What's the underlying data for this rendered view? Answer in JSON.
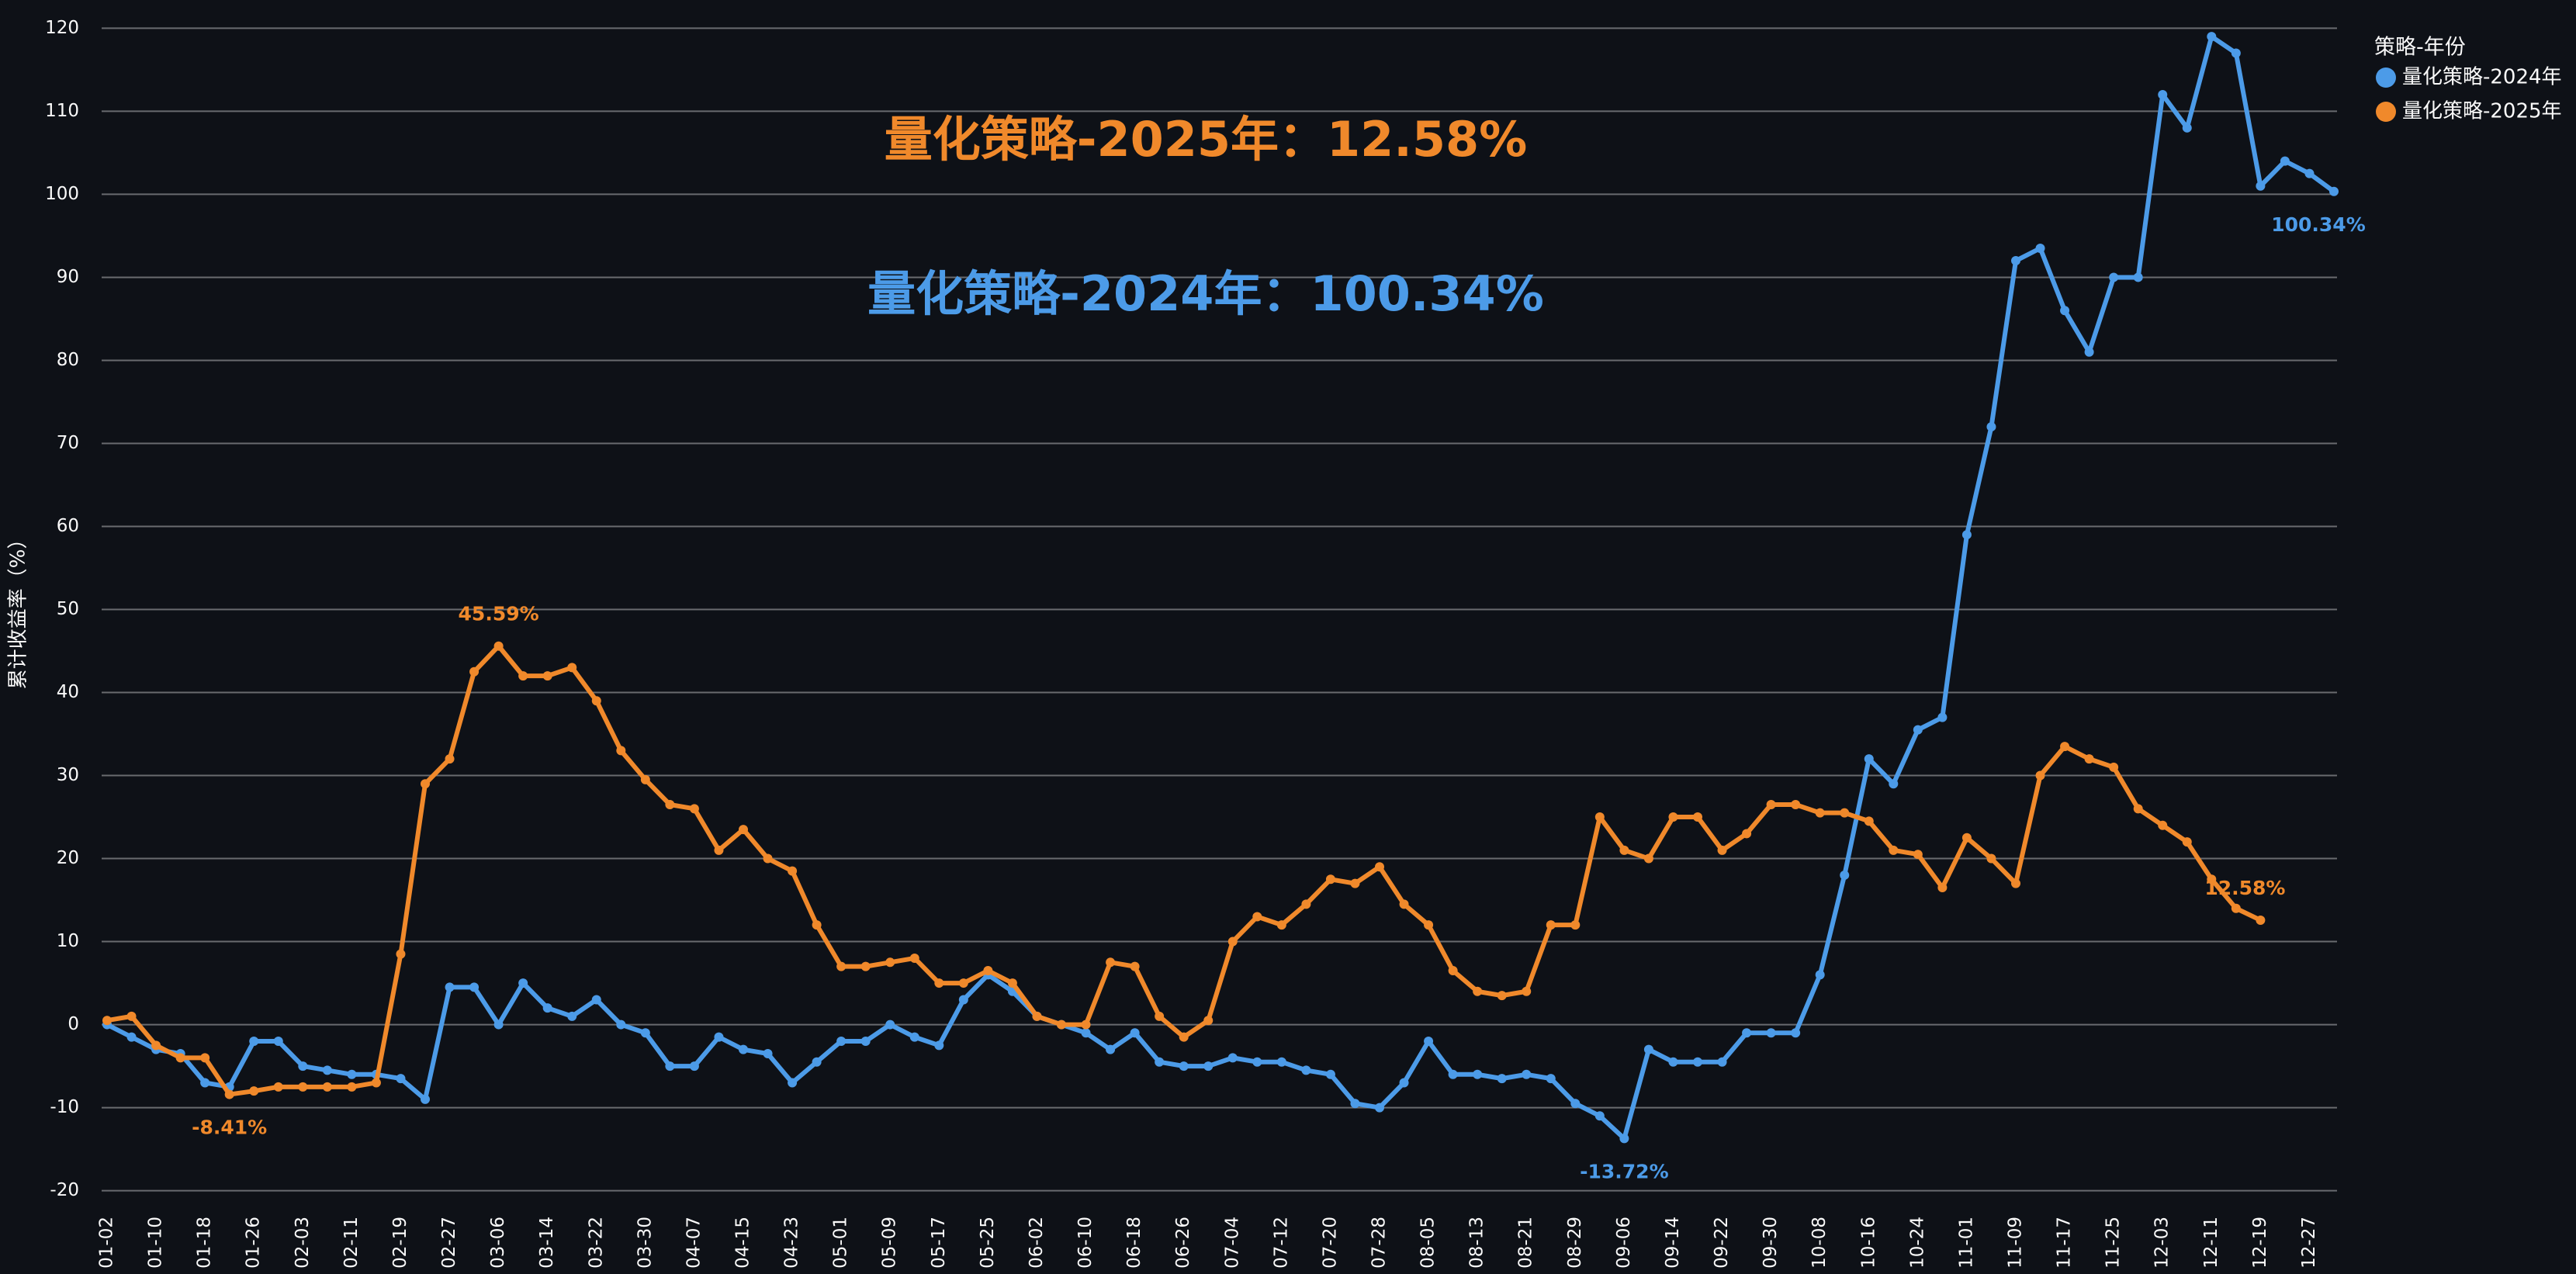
{
  "chart_data": {
    "type": "line",
    "y_label": "累计收益率（%）",
    "legend_title": "策略-年份",
    "legend": "right",
    "grid": true,
    "annotations": [
      {
        "text": "量化策略-2025年：12.58%",
        "color": "#f0892b"
      },
      {
        "text": "量化策略-2024年：100.34%",
        "color": "#4c9be8"
      }
    ],
    "categories": [
      "01-02",
      null,
      "01-10",
      null,
      "01-18",
      null,
      "01-26",
      null,
      "02-03",
      null,
      "02-11",
      null,
      "02-19",
      null,
      "02-27",
      null,
      "03-06",
      null,
      "03-14",
      null,
      "03-22",
      null,
      "03-30",
      null,
      "04-07",
      null,
      "04-15",
      null,
      "04-23",
      null,
      "05-01",
      null,
      "05-09",
      null,
      "05-17",
      null,
      "05-25",
      null,
      "06-02",
      null,
      "06-10",
      null,
      "06-18",
      null,
      "06-26",
      null,
      "07-04",
      null,
      "07-12",
      null,
      "07-20",
      null,
      "07-28",
      null,
      "08-05",
      null,
      "08-13",
      null,
      "08-21",
      null,
      "08-29",
      null,
      "09-06",
      null,
      "09-14",
      null,
      "09-22",
      null,
      "09-30",
      null,
      "10-08",
      null,
      "10-16",
      null,
      "10-24",
      null,
      "11-01",
      null,
      "11-09",
      null,
      "11-17",
      null,
      "11-25",
      null,
      "12-03",
      null,
      "12-11",
      null,
      "12-19",
      null,
      "12-27",
      null
    ],
    "series": [
      {
        "name": "量化策略-2024年",
        "color": "#4c9be8",
        "values": [
          0,
          -1.5,
          -3,
          -3.5,
          -7,
          -7.5,
          -2,
          -2,
          -5,
          -5.5,
          -6,
          -6,
          -6.5,
          -9,
          4.5,
          4.5,
          0,
          5,
          2,
          1,
          3,
          0,
          -1,
          -5,
          -5,
          -1.5,
          -3,
          -3.5,
          -7,
          -4.5,
          -2,
          -2,
          0,
          -1.5,
          -2.5,
          3,
          6,
          4,
          1,
          0,
          -1,
          -3,
          -1,
          -4.5,
          -5,
          -5,
          -4,
          -4.5,
          -4.5,
          -5.5,
          -6,
          -9.5,
          -10,
          -7,
          -2,
          -6,
          -6,
          -6.5,
          -6,
          -6.5,
          -9.5,
          -11,
          -13.72,
          -3,
          -4.5,
          -4.5,
          -4.5,
          -1,
          -1,
          -1,
          6,
          18,
          32,
          29,
          35.5,
          37,
          59,
          72,
          92,
          93.5,
          86,
          81,
          90,
          90,
          112,
          108,
          119,
          117,
          101,
          104,
          102.5,
          100.34
        ],
        "value_labels": [
          null,
          null,
          null,
          null,
          null,
          null,
          null,
          null,
          null,
          null,
          null,
          null,
          null,
          null,
          null,
          null,
          null,
          null,
          null,
          null,
          null,
          null,
          null,
          null,
          null,
          null,
          null,
          null,
          null,
          null,
          null,
          null,
          null,
          null,
          null,
          null,
          null,
          null,
          null,
          null,
          null,
          null,
          null,
          null,
          null,
          null,
          null,
          null,
          null,
          null,
          null,
          null,
          null,
          null,
          null,
          null,
          null,
          null,
          null,
          null,
          null,
          null,
          "-13.72%",
          null,
          null,
          null,
          null,
          null,
          null,
          null,
          null,
          null,
          null,
          null,
          null,
          null,
          null,
          null,
          null,
          null,
          null,
          null,
          null,
          null,
          null,
          null,
          null,
          null,
          null,
          null,
          null,
          "100.34%"
        ]
      },
      {
        "name": "量化策略-2025年",
        "color": "#f0892b",
        "values": [
          0.5,
          1,
          -2.5,
          -4,
          -4,
          -8.41,
          -8,
          -7.5,
          -7.5,
          -7.5,
          -7.5,
          -7,
          8.5,
          29,
          32,
          42.5,
          45.59,
          42,
          42,
          43,
          39,
          33,
          29.5,
          26.5,
          26,
          21,
          23.5,
          20,
          18.5,
          12,
          7,
          7,
          7.5,
          8,
          5,
          5,
          6.5,
          5,
          1,
          0,
          0,
          7.5,
          7,
          1,
          -1.5,
          0.5,
          10,
          13,
          12,
          14.5,
          17.5,
          17,
          19,
          14.5,
          12,
          6.5,
          4,
          3.5,
          4,
          12,
          12,
          25,
          21,
          20,
          25,
          25,
          21,
          23,
          26.5,
          26.5,
          25.5,
          25.5,
          24.5,
          21,
          20.5,
          16.5,
          22.5,
          20,
          17,
          30,
          33.5,
          32,
          31,
          26,
          24,
          22,
          17.5,
          14,
          12.58,
          null,
          null,
          null
        ],
        "value_labels": [
          null,
          null,
          null,
          null,
          null,
          "-8.41%",
          null,
          null,
          null,
          null,
          null,
          null,
          null,
          null,
          null,
          null,
          "45.59%",
          null,
          null,
          null,
          null,
          null,
          null,
          null,
          null,
          null,
          null,
          null,
          null,
          null,
          null,
          null,
          null,
          null,
          null,
          null,
          null,
          null,
          null,
          null,
          null,
          null,
          null,
          null,
          null,
          null,
          null,
          null,
          null,
          null,
          null,
          null,
          null,
          null,
          null,
          null,
          null,
          null,
          null,
          null,
          null,
          null,
          null,
          null,
          null,
          null,
          null,
          null,
          null,
          null,
          null,
          null,
          null,
          null,
          null,
          null,
          null,
          null,
          null,
          null,
          null,
          null,
          null,
          null,
          null,
          null,
          null,
          null,
          "12.58%",
          null,
          null,
          null
        ]
      }
    ],
    "ylim": [
      -22,
      122
    ],
    "yticks": [
      -20,
      -10,
      0,
      10,
      20,
      30,
      40,
      50,
      60,
      70,
      80,
      90,
      100,
      110,
      120
    ]
  }
}
